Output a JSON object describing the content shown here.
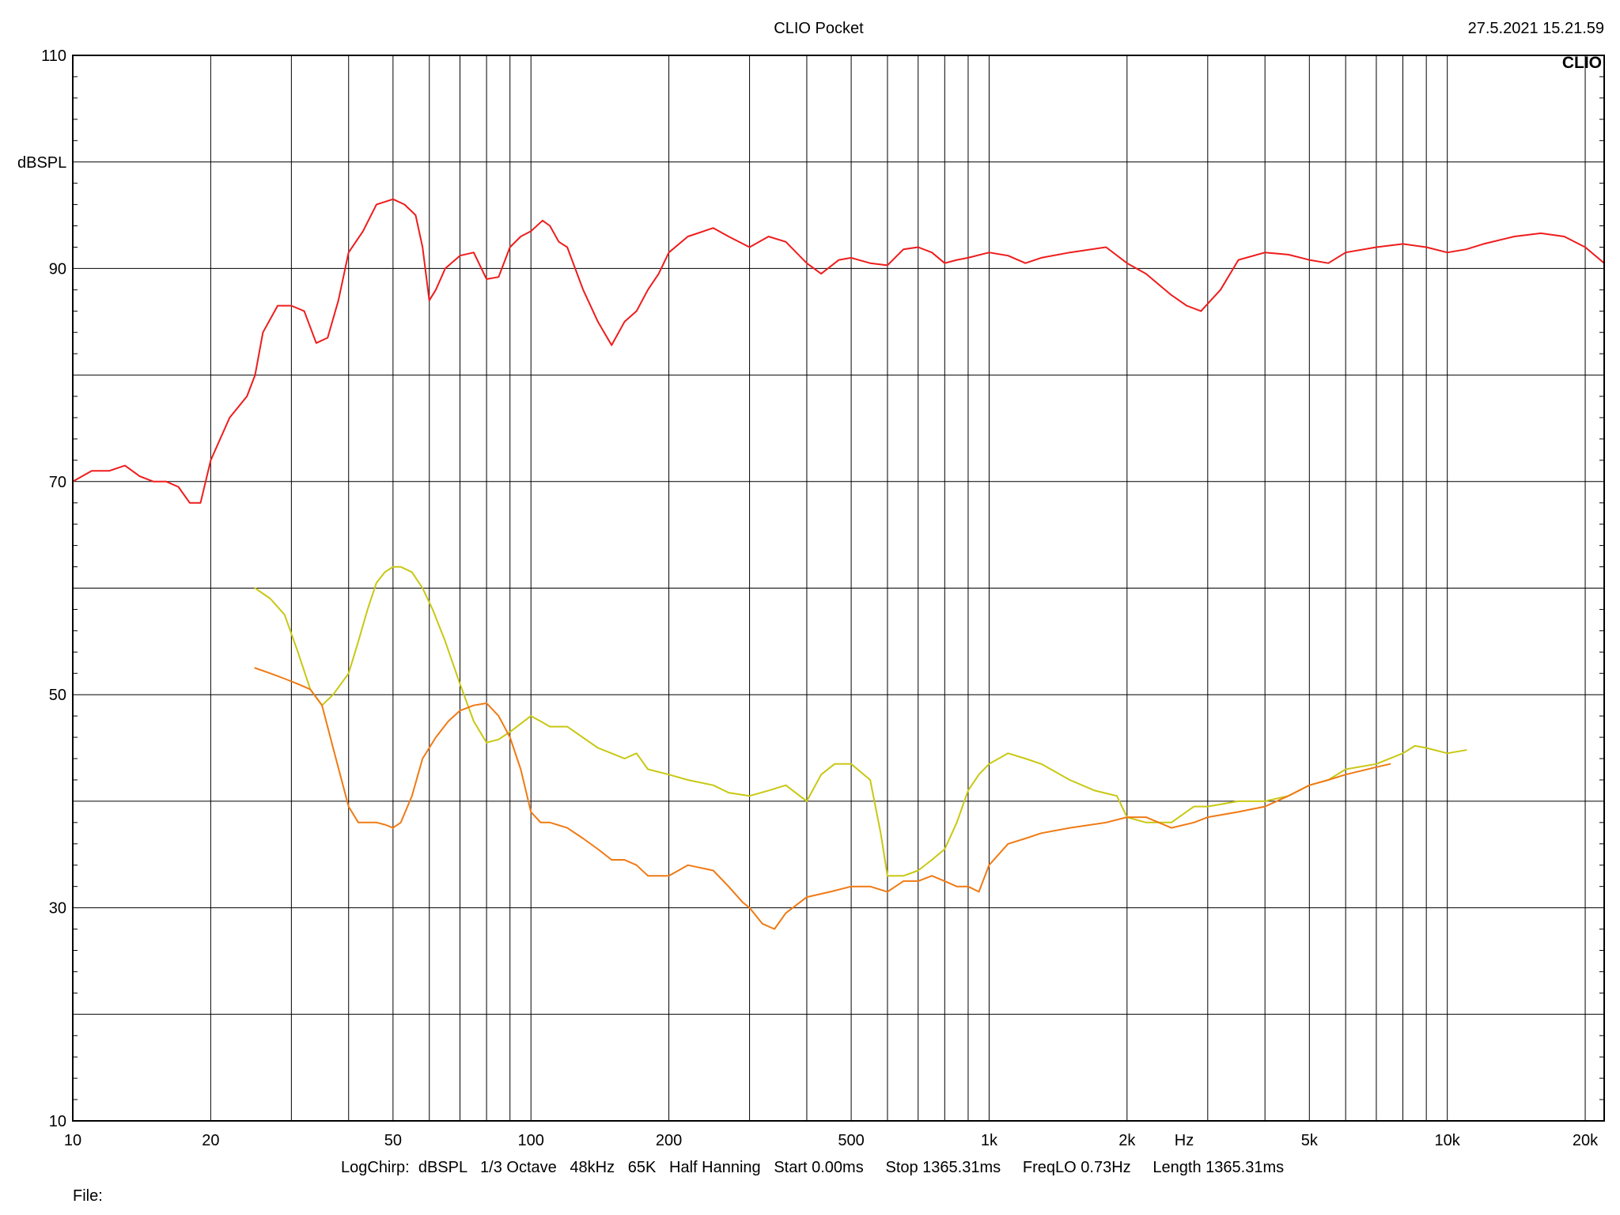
{
  "header": {
    "title": "CLIO Pocket",
    "timestamp": "27.5.2021 15.21.59",
    "logo": "CLIO"
  },
  "footer": {
    "settings": "LogChirp:  dBSPL   1/3 Octave   48kHz   65K   Half Hanning   Start 0.00ms     Stop 1365.31ms     FreqLO 0.73Hz     Length 1365.31ms",
    "file_label": "File:"
  },
  "chart_data": {
    "type": "line",
    "xscale": "log",
    "xlim": [
      10,
      22000
    ],
    "ylim": [
      10,
      110
    ],
    "grid": true,
    "ylabel": "dBSPL",
    "xlabel": "Hz",
    "y_ticks": [
      {
        "value": 110,
        "label": "110"
      },
      {
        "value": 90,
        "label": "90"
      },
      {
        "value": 70,
        "label": "70"
      },
      {
        "value": 50,
        "label": "50"
      },
      {
        "value": 30,
        "label": "30"
      },
      {
        "value": 10,
        "label": "10"
      }
    ],
    "x_ticks": [
      {
        "value": 10,
        "label": "10"
      },
      {
        "value": 20,
        "label": "20"
      },
      {
        "value": 50,
        "label": "50"
      },
      {
        "value": 100,
        "label": "100"
      },
      {
        "value": 200,
        "label": "200"
      },
      {
        "value": 500,
        "label": "500"
      },
      {
        "value": 1000,
        "label": "1k"
      },
      {
        "value": 5000,
        "label": "5k"
      },
      {
        "value": 10000,
        "label": "10k"
      },
      {
        "value": 20000,
        "label": "20k"
      }
    ],
    "x_ticks_extra": [
      {
        "value": 2000,
        "label": "2k"
      }
    ],
    "series": [
      {
        "color": "#ee1c1c",
        "x": [
          10,
          11,
          12,
          13,
          14,
          15,
          16,
          17,
          18,
          19,
          20,
          22,
          24,
          25,
          26,
          28,
          30,
          32,
          34,
          36,
          38,
          40,
          43,
          46,
          50,
          53,
          56,
          58,
          60,
          62,
          65,
          70,
          75,
          80,
          85,
          90,
          95,
          100,
          106,
          110,
          115,
          120,
          130,
          140,
          150,
          160,
          170,
          180,
          190,
          200,
          220,
          250,
          270,
          300,
          330,
          360,
          400,
          430,
          470,
          500,
          550,
          600,
          650,
          700,
          750,
          800,
          850,
          900,
          1000,
          1100,
          1200,
          1300,
          1500,
          1800,
          2000,
          2200,
          2500,
          2700,
          2900,
          3200,
          3500,
          4000,
          4500,
          5000,
          5500,
          6000,
          7000,
          8000,
          9000,
          10000,
          11000,
          12000,
          14000,
          16000,
          18000,
          20000,
          22000
        ],
        "values": [
          70,
          71,
          71,
          71.5,
          70.5,
          70,
          70,
          69.5,
          68,
          68,
          72,
          76,
          78,
          80,
          84,
          86.5,
          86.5,
          86,
          83,
          83.5,
          87,
          91.5,
          93.5,
          96,
          96.5,
          96,
          95,
          92,
          87,
          88,
          90,
          91.2,
          91.5,
          89,
          89.2,
          92,
          93,
          93.5,
          94.5,
          94,
          92.5,
          92,
          88,
          85,
          82.8,
          85,
          86,
          88,
          89.5,
          91.5,
          93,
          93.8,
          93,
          92,
          93,
          92.5,
          90.5,
          89.5,
          90.8,
          91,
          90.5,
          90.3,
          91.8,
          92,
          91.5,
          90.5,
          90.8,
          91,
          91.5,
          91.2,
          90.5,
          91,
          91.5,
          92,
          90.5,
          89.5,
          87.5,
          86.5,
          86,
          88,
          90.8,
          91.5,
          91.3,
          90.8,
          90.5,
          91.5,
          92,
          92.3,
          92,
          91.5,
          91.8,
          92.3,
          93,
          93.3,
          93,
          92,
          90.5
        ]
      },
      {
        "color": "#c8c814",
        "x": [
          25,
          27,
          29,
          31,
          33,
          35,
          37,
          40,
          42,
          44,
          46,
          48,
          50,
          52,
          55,
          58,
          61,
          65,
          70,
          75,
          80,
          85,
          90,
          100,
          105,
          110,
          120,
          140,
          150,
          160,
          170,
          180,
          200,
          220,
          250,
          270,
          300,
          330,
          360,
          400,
          430,
          460,
          500,
          550,
          580,
          600,
          650,
          700,
          750,
          800,
          850,
          900,
          950,
          1000,
          1100,
          1200,
          1300,
          1500,
          1700,
          1900,
          2000,
          2200,
          2500,
          2800,
          3000,
          3500,
          4000,
          4500,
          5000,
          5500,
          6000,
          7000,
          8000,
          8500,
          9000,
          10000,
          11000
        ],
        "values": [
          60,
          59,
          57.5,
          54,
          50.5,
          49,
          50,
          52,
          55,
          58,
          60.5,
          61.5,
          62,
          62,
          61.5,
          60,
          58,
          55,
          51,
          47.5,
          45.5,
          45.8,
          46.5,
          48,
          47.5,
          47,
          47,
          45,
          44.5,
          44,
          44.5,
          43,
          42.5,
          42,
          41.5,
          40.8,
          40.5,
          41,
          41.5,
          40,
          42.5,
          43.5,
          43.5,
          42,
          37,
          33,
          33,
          33.5,
          34.5,
          35.5,
          38,
          41,
          42.5,
          43.5,
          44.5,
          44,
          43.5,
          42,
          41,
          40.5,
          38.5,
          38,
          38,
          39.5,
          39.5,
          40,
          40,
          40.5,
          41.5,
          42,
          43,
          43.5,
          44.5,
          45.2,
          45,
          44.5,
          44.8
        ]
      },
      {
        "color": "#f07a14",
        "x": [
          25,
          27,
          29,
          31,
          33,
          35,
          37,
          40,
          42,
          44,
          46,
          48,
          50,
          52,
          55,
          58,
          62,
          66,
          70,
          75,
          80,
          85,
          90,
          95,
          100,
          105,
          110,
          120,
          130,
          140,
          150,
          160,
          170,
          180,
          190,
          200,
          220,
          250,
          270,
          290,
          300,
          320,
          340,
          360,
          400,
          450,
          500,
          550,
          600,
          650,
          700,
          750,
          800,
          850,
          900,
          950,
          1000,
          1100,
          1200,
          1300,
          1500,
          1800,
          2000,
          2200,
          2500,
          2800,
          3000,
          3500,
          4000,
          4500,
          5000,
          5500,
          6000,
          7000,
          7500
        ],
        "values": [
          52.5,
          52,
          51.5,
          51,
          50.5,
          49,
          45,
          39.5,
          38,
          38,
          38,
          37.8,
          37.5,
          38,
          40.5,
          44,
          46,
          47.5,
          48.5,
          49,
          49.2,
          48,
          46,
          43,
          39,
          38,
          38,
          37.5,
          36.5,
          35.5,
          34.5,
          34.5,
          34,
          33,
          33,
          33,
          34,
          33.5,
          32,
          30.5,
          30,
          28.5,
          28,
          29.5,
          31,
          31.5,
          32,
          32,
          31.5,
          32.5,
          32.5,
          33,
          32.5,
          32,
          32,
          31.5,
          34,
          36,
          36.5,
          37,
          37.5,
          38,
          38.5,
          38.5,
          37.5,
          38,
          38.5,
          39,
          39.5,
          40.5,
          41.5,
          42,
          42.5,
          43.2,
          43.5
        ]
      }
    ]
  }
}
